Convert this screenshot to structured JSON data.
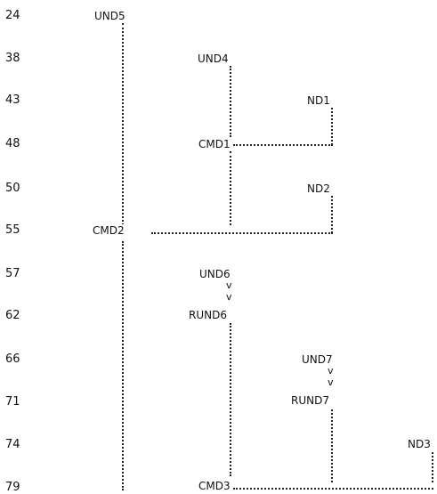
{
  "rows": [
    "24",
    "38",
    "43",
    "48",
    "50",
    "55",
    "57",
    "62",
    "66",
    "71",
    "74",
    "79"
  ],
  "nodes": {
    "und5": "UND5",
    "und4": "UND4",
    "nd1": "ND1",
    "cmd1": "CMD1",
    "nd2": "ND2",
    "cmd2": "CMD2",
    "und6": "UND6",
    "rund6": "RUND6",
    "und7": "UND7",
    "rund7": "RUND7",
    "nd3": "ND3",
    "cmd3": "CMD3"
  },
  "arrow_glyph": "v"
}
